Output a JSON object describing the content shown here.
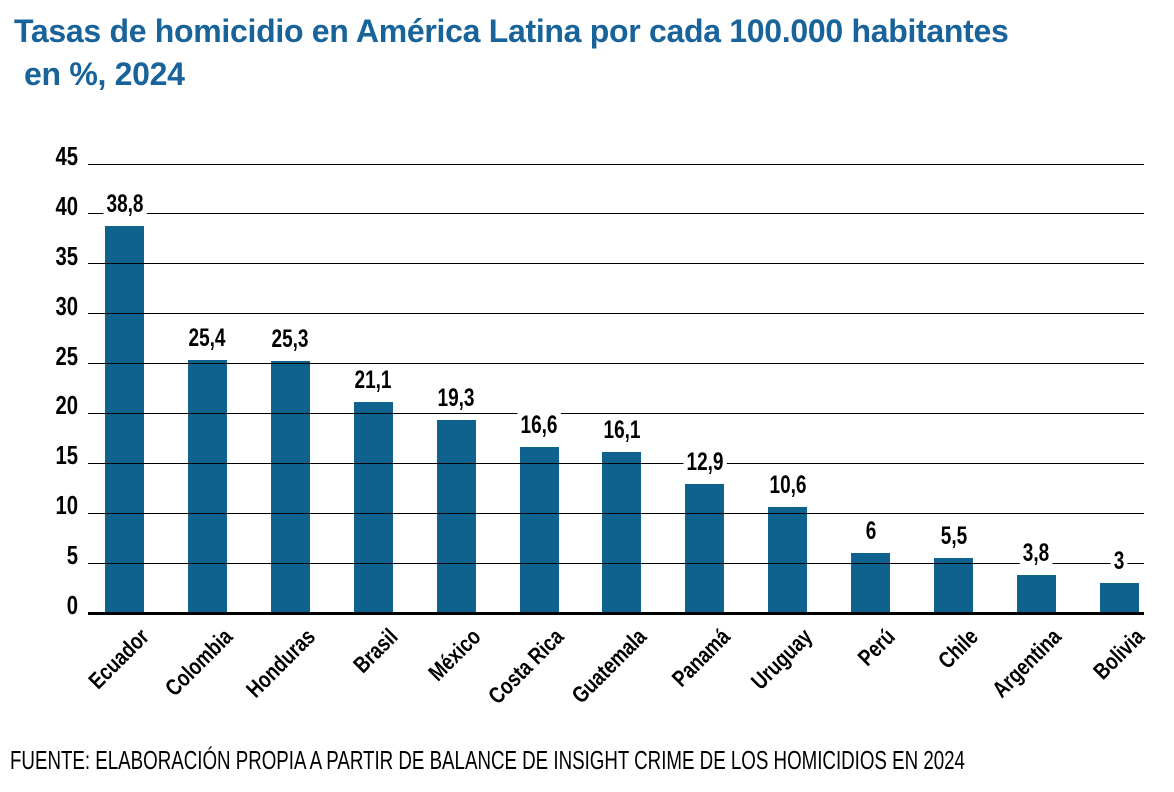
{
  "title": {
    "line1": "Tasas de homicidio en América Latina por cada 100.000 habitantes",
    "line2": "en %, 2024"
  },
  "source": "FUENTE: ELABORACIÓN PROPIA A PARTIR DE BALANCE DE INSIGHT CRIME DE LOS HOMICIDIOS EN 2024",
  "colors": {
    "title": "#17639a",
    "bar": "#0f618e",
    "grid": "#000000",
    "text": "#000000",
    "background": "#ffffff"
  },
  "chart_data": {
    "type": "bar",
    "title": "Tasas de homicidio en América Latina por cada 100.000 habitantes en %, 2024",
    "categories": [
      "Ecuador",
      "Colombia",
      "Honduras",
      "Brasil",
      "México",
      "Costa Rica",
      "Guatemala",
      "Panamá",
      "Uruguay",
      "Perú",
      "Chile",
      "Argentina",
      "Bolivia"
    ],
    "values": [
      38.8,
      25.4,
      25.3,
      21.1,
      19.3,
      16.6,
      16.1,
      12.9,
      10.6,
      6,
      5.5,
      3.8,
      3
    ],
    "value_labels": [
      "38,8",
      "25,4",
      "25,3",
      "21,1",
      "19,3",
      "16,6",
      "16,1",
      "12,9",
      "10,6",
      "6",
      "5,5",
      "3,8",
      "3"
    ],
    "xlabel": "",
    "ylabel": "",
    "ylim": [
      0,
      45
    ],
    "yticks": [
      0,
      5,
      10,
      15,
      20,
      25,
      30,
      35,
      40,
      45
    ],
    "grid": true,
    "legend": false,
    "bar_color": "#0f618e"
  }
}
